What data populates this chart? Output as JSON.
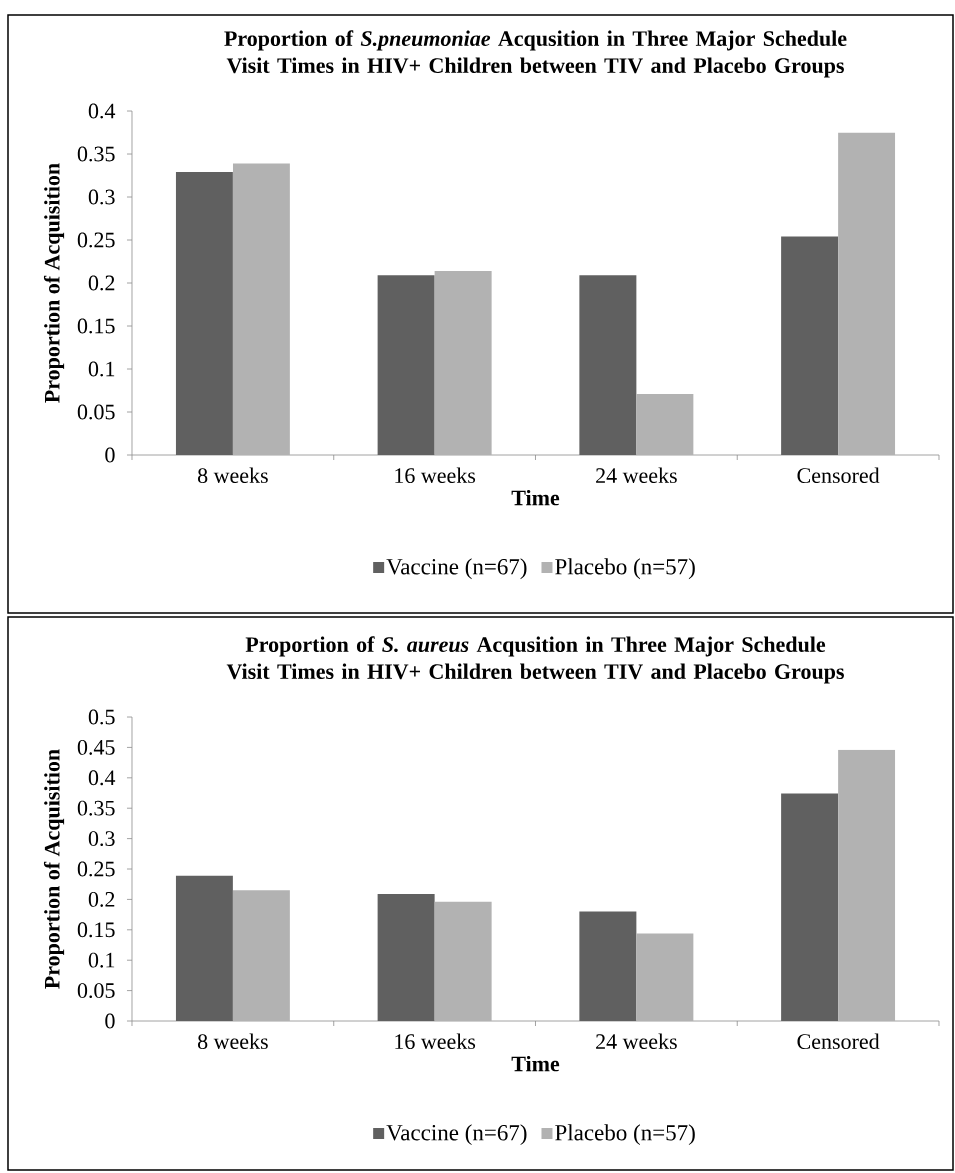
{
  "chart_data": [
    {
      "type": "bar",
      "title": "Proportion of *S.pneumoniae* Acqusition in Three Major Schedule Visit Times in HIV+ Children between TIV and Placebo Groups",
      "xlabel": "Time",
      "ylabel": "Proportion of Acquisition",
      "categories": [
        "8 weeks",
        "16 weeks",
        "24 weeks",
        "Censored"
      ],
      "series": [
        {
          "name": "Vaccine (n=67)",
          "color": "#606060",
          "values": [
            0.329,
            0.209,
            0.209,
            0.254
          ]
        },
        {
          "name": "Placebo (n=57)",
          "color": "#b2b2b2",
          "values": [
            0.339,
            0.214,
            0.071,
            0.375
          ]
        }
      ],
      "ylim": [
        0,
        0.4
      ],
      "yticks": [
        0,
        0.05,
        0.1,
        0.15,
        0.2,
        0.25,
        0.3,
        0.35,
        0.4
      ],
      "legend": "bottom"
    },
    {
      "type": "bar",
      "title": "Proportion of *S. aureus* Acqusition in Three Major Schedule Visit Times in HIV+ Children between TIV and Placebo Groups",
      "xlabel": "Time",
      "ylabel": "Proportion of Acquisition",
      "categories": [
        "8 weeks",
        "16 weeks",
        "24 weeks",
        "Censored"
      ],
      "series": [
        {
          "name": "Vaccine (n=67)",
          "color": "#606060",
          "values": [
            0.239,
            0.209,
            0.18,
            0.374
          ]
        },
        {
          "name": "Placebo (n=57)",
          "color": "#b2b2b2",
          "values": [
            0.215,
            0.196,
            0.144,
            0.446
          ]
        }
      ],
      "ylim": [
        0,
        0.5
      ],
      "yticks": [
        0,
        0.05,
        0.1,
        0.15,
        0.2,
        0.25,
        0.3,
        0.35,
        0.4,
        0.45,
        0.5
      ],
      "legend": "bottom"
    }
  ]
}
